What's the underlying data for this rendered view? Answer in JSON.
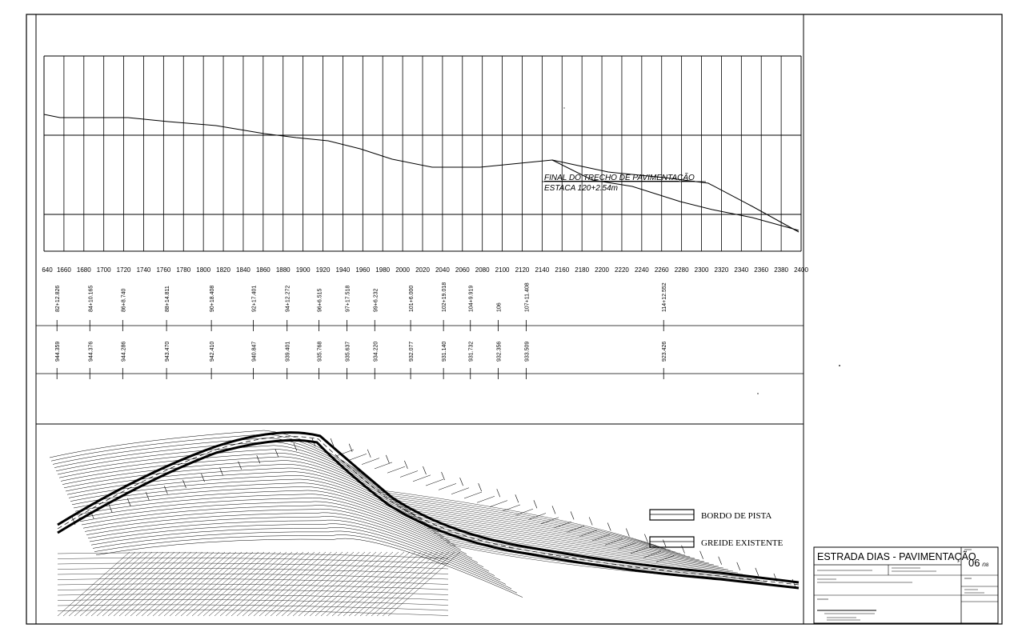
{
  "profile": {
    "chainage_ticks": [
      "1640",
      "1660",
      "1680",
      "1700",
      "1720",
      "1740",
      "1760",
      "1780",
      "1800",
      "1820",
      "1840",
      "1860",
      "1880",
      "1900",
      "1920",
      "1940",
      "1960",
      "1980",
      "2000",
      "2020",
      "2040",
      "2060",
      "2080",
      "2100",
      "2120",
      "2140",
      "2160",
      "2180",
      "2200",
      "2220",
      "2240",
      "2260",
      "2280",
      "2300",
      "2320",
      "2340",
      "2360",
      "2380",
      "2400"
    ],
    "annotation_line1": "FINAL DO TRECHO DE PAVIMENTAÇÃO",
    "annotation_line2": "ESTACA 120+2.54m"
  },
  "stations": [
    {
      "chainage": 1653,
      "station": "82+12.826",
      "elevation": "944.359"
    },
    {
      "chainage": 1686,
      "station": "84+10.165",
      "elevation": "944.376"
    },
    {
      "chainage": 1719,
      "station": "86+8.740",
      "elevation": "944.286"
    },
    {
      "chainage": 1763,
      "station": "88+14.811",
      "elevation": "943.470"
    },
    {
      "chainage": 1808,
      "station": "90+18.408",
      "elevation": "942.410"
    },
    {
      "chainage": 1850,
      "station": "92+17.401",
      "elevation": "940.847"
    },
    {
      "chainage": 1884,
      "station": "94+12.272",
      "elevation": "939.401"
    },
    {
      "chainage": 1916,
      "station": "96+6.515",
      "elevation": "935.768"
    },
    {
      "chainage": 1944,
      "station": "97+17.518",
      "elevation": "935.637"
    },
    {
      "chainage": 1972,
      "station": "99+6.232",
      "elevation": "934.220"
    },
    {
      "chainage": 2008,
      "station": "101+6.000",
      "elevation": "932.077"
    },
    {
      "chainage": 2041,
      "station": "102+19.018",
      "elevation": "931.140"
    },
    {
      "chainage": 2068,
      "station": "104+9.919",
      "elevation": "931.732"
    },
    {
      "chainage": 2096,
      "station": "106",
      "elevation": "932.356"
    },
    {
      "chainage": 2124,
      "station": "107+11.408",
      "elevation": "933.509"
    },
    {
      "chainage": 2262,
      "station": "114+12.552",
      "elevation": "923.426"
    }
  ],
  "legend": {
    "item1": "BORDO DE PISTA",
    "item2": "GREIDE EXISTENTE"
  },
  "title_block": {
    "title": "ESTRADA DIAS - PAVIMENTAÇÃO",
    "sheet_number": "06",
    "sheet_suffix": "/08"
  }
}
